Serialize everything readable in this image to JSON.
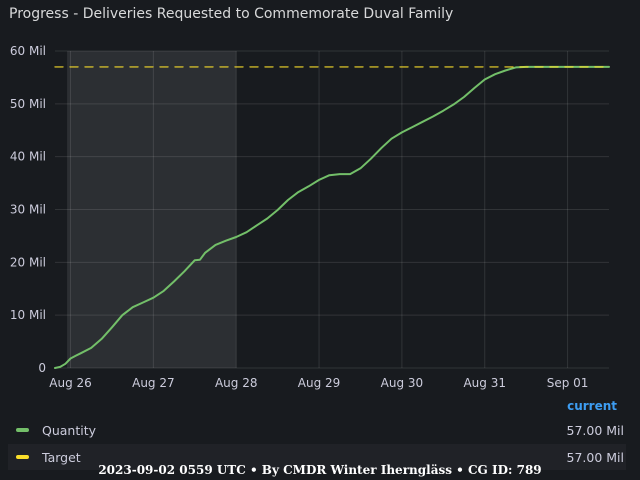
{
  "panel": {
    "title": "Progress - Deliveries Requested to Commemorate Duval Family"
  },
  "legend": {
    "column_header": "current",
    "items": [
      {
        "name": "Quantity",
        "value": "57.00 Mil",
        "color": "#73bf69"
      },
      {
        "name": "Target",
        "value": "57.00 Mil",
        "color": "#fade2a"
      }
    ]
  },
  "footer": "2023-09-02 0559 UTC • By CMDR Winter Iherngläss • CG ID: 789",
  "chart_data": {
    "type": "line",
    "title": "Progress - Deliveries Requested to Commemorate Duval Family",
    "xlabel": "",
    "ylabel": "",
    "x_ticks": [
      "Aug 26",
      "Aug 27",
      "Aug 28",
      "Aug 29",
      "Aug 30",
      "Aug 31",
      "Sep 01"
    ],
    "y_ticks": [
      "0",
      "10 Mil",
      "20 Mil",
      "30 Mil",
      "40 Mil",
      "50 Mil",
      "60 Mil"
    ],
    "xlim": [
      "2023-08-25T19:30",
      "2023-09-01T12:00"
    ],
    "ylim": [
      0,
      60
    ],
    "grid": true,
    "highlight_range": [
      "2023-08-25T23:00",
      "2023-08-28T00:00"
    ],
    "series": [
      {
        "name": "Quantity",
        "color": "#73bf69",
        "style": "solid",
        "points": [
          [
            "2023-08-25T19:30",
            0.0
          ],
          [
            "2023-08-25T21:00",
            0.2
          ],
          [
            "2023-08-25T22:30",
            0.8
          ],
          [
            "2023-08-26T00:00",
            1.8
          ],
          [
            "2023-08-26T01:30",
            2.3
          ],
          [
            "2023-08-26T03:00",
            2.8
          ],
          [
            "2023-08-26T06:00",
            3.8
          ],
          [
            "2023-08-26T09:00",
            5.5
          ],
          [
            "2023-08-26T12:00",
            7.7
          ],
          [
            "2023-08-26T15:00",
            10.0
          ],
          [
            "2023-08-26T18:00",
            11.5
          ],
          [
            "2023-08-26T21:00",
            12.4
          ],
          [
            "2023-08-27T00:00",
            13.3
          ],
          [
            "2023-08-27T03:00",
            14.6
          ],
          [
            "2023-08-27T06:00",
            16.4
          ],
          [
            "2023-08-27T09:00",
            18.3
          ],
          [
            "2023-08-27T12:00",
            20.4
          ],
          [
            "2023-08-27T13:30",
            20.5
          ],
          [
            "2023-08-27T15:00",
            21.8
          ],
          [
            "2023-08-27T18:00",
            23.3
          ],
          [
            "2023-08-27T21:00",
            24.1
          ],
          [
            "2023-08-28T00:00",
            24.8
          ],
          [
            "2023-08-28T03:00",
            25.7
          ],
          [
            "2023-08-28T06:00",
            27.0
          ],
          [
            "2023-08-28T09:00",
            28.3
          ],
          [
            "2023-08-28T12:00",
            29.9
          ],
          [
            "2023-08-28T15:00",
            31.8
          ],
          [
            "2023-08-28T18:00",
            33.3
          ],
          [
            "2023-08-28T21:00",
            34.4
          ],
          [
            "2023-08-29T00:00",
            35.6
          ],
          [
            "2023-08-29T03:00",
            36.5
          ],
          [
            "2023-08-29T06:00",
            36.7
          ],
          [
            "2023-08-29T09:00",
            36.7
          ],
          [
            "2023-08-29T12:00",
            37.8
          ],
          [
            "2023-08-29T15:00",
            39.6
          ],
          [
            "2023-08-29T18:00",
            41.6
          ],
          [
            "2023-08-29T21:00",
            43.4
          ],
          [
            "2023-08-30T00:00",
            44.6
          ],
          [
            "2023-08-30T03:00",
            45.6
          ],
          [
            "2023-08-30T06:00",
            46.6
          ],
          [
            "2023-08-30T09:00",
            47.6
          ],
          [
            "2023-08-30T12:00",
            48.7
          ],
          [
            "2023-08-30T15:00",
            49.9
          ],
          [
            "2023-08-30T18:00",
            51.3
          ],
          [
            "2023-08-30T21:00",
            53.0
          ],
          [
            "2023-08-31T00:00",
            54.6
          ],
          [
            "2023-08-31T03:00",
            55.6
          ],
          [
            "2023-08-31T06:00",
            56.3
          ],
          [
            "2023-08-31T09:00",
            56.9
          ],
          [
            "2023-08-31T12:00",
            57.0
          ],
          [
            "2023-09-01T00:00",
            57.0
          ],
          [
            "2023-09-01T12:00",
            57.0
          ]
        ]
      },
      {
        "name": "Target",
        "color": "#fade2a",
        "style": "dashed",
        "points": [
          [
            "2023-08-25T19:30",
            57.0
          ],
          [
            "2023-09-01T12:00",
            57.0
          ]
        ]
      }
    ]
  }
}
